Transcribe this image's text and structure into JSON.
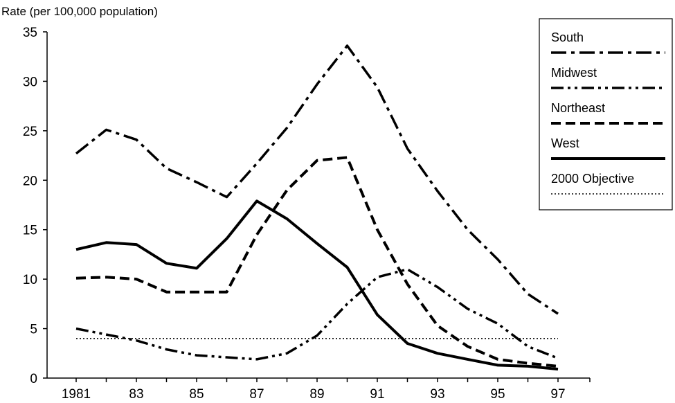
{
  "chart_data": {
    "type": "line",
    "ylabel": "Rate (per 100,000 population)",
    "xlabel": "",
    "title": "",
    "x": [
      1981,
      1982,
      1983,
      1984,
      1985,
      1986,
      1987,
      1988,
      1989,
      1990,
      1991,
      1992,
      1993,
      1994,
      1995,
      1996,
      1997
    ],
    "x_tick_values": [
      1981,
      1983,
      1985,
      1987,
      1989,
      1991,
      1993,
      1995,
      1997
    ],
    "x_tick_labels": [
      "1981",
      "83",
      "85",
      "87",
      "89",
      "91",
      "93",
      "95",
      "97"
    ],
    "y_ticks": [
      0,
      5,
      10,
      15,
      20,
      25,
      30,
      35
    ],
    "ylim": [
      0,
      35
    ],
    "grid": false,
    "legend_position": "top-right",
    "series": [
      {
        "name": "South",
        "dash": "long-dash-dot",
        "values": [
          22.7,
          25.1,
          24.1,
          21.2,
          19.8,
          18.3,
          21.7,
          25.3,
          29.7,
          33.6,
          29.4,
          23.2,
          18.9,
          15.0,
          12.0,
          8.5,
          6.5
        ]
      },
      {
        "name": "Midwest",
        "dash": "dash-dot-dot",
        "values": [
          5.0,
          4.4,
          3.8,
          2.9,
          2.3,
          2.1,
          1.9,
          2.5,
          4.3,
          7.5,
          10.2,
          11.0,
          9.2,
          7.0,
          5.5,
          3.2,
          2.0
        ]
      },
      {
        "name": "Northeast",
        "dash": "dashed",
        "values": [
          10.1,
          10.2,
          10.0,
          8.7,
          8.7,
          8.7,
          14.5,
          19.0,
          22.0,
          22.3,
          15.0,
          9.5,
          5.3,
          3.2,
          1.9,
          1.5,
          1.2
        ]
      },
      {
        "name": "West",
        "dash": "solid",
        "values": [
          13.0,
          13.7,
          13.5,
          11.6,
          11.1,
          14.1,
          17.9,
          16.1,
          13.6,
          11.2,
          6.4,
          3.5,
          2.5,
          1.9,
          1.3,
          1.2,
          0.9
        ]
      },
      {
        "name": "2000 Objective",
        "dash": "dotted",
        "values": [
          4.0,
          4.0,
          4.0,
          4.0,
          4.0,
          4.0,
          4.0,
          4.0,
          4.0,
          4.0,
          4.0,
          4.0,
          4.0,
          4.0,
          4.0,
          4.0,
          4.0
        ]
      }
    ]
  }
}
